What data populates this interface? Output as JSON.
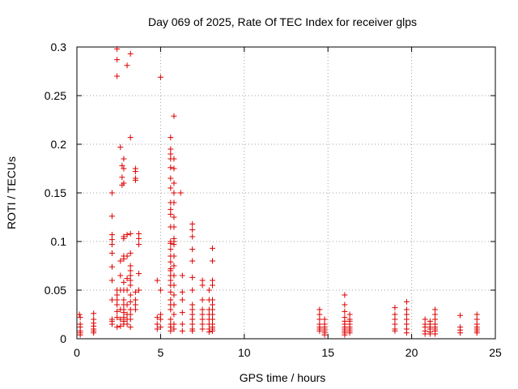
{
  "chart_data": {
    "type": "scatter",
    "title": "Day 069 of 2025, Rate Of TEC Index for receiver glps",
    "xlabel": "GPS time / hours",
    "ylabel": "ROTI / TECUs",
    "xlim": [
      0,
      25
    ],
    "ylim": [
      0,
      0.3
    ],
    "xticks": [
      {
        "value": 0,
        "label": "0"
      },
      {
        "value": 5,
        "label": "5"
      },
      {
        "value": 10,
        "label": "10"
      },
      {
        "value": 15,
        "label": "15"
      },
      {
        "value": 20,
        "label": "20"
      },
      {
        "value": 25,
        "label": "25"
      }
    ],
    "yticks": [
      {
        "value": 0,
        "label": "0"
      },
      {
        "value": 0.05,
        "label": "0.05"
      },
      {
        "value": 0.1,
        "label": "0.1"
      },
      {
        "value": 0.15,
        "label": "0.15"
      },
      {
        "value": 0.2,
        "label": "0.2"
      },
      {
        "value": 0.25,
        "label": "0.25"
      },
      {
        "value": 0.3,
        "label": "0.3"
      }
    ],
    "grid": true,
    "marker": "plus",
    "color": "#dd0000",
    "series": [
      {
        "name": "ROTI",
        "points": [
          [
            0.15,
            0.025
          ],
          [
            0.2,
            0.022
          ],
          [
            0.2,
            0.015
          ],
          [
            0.2,
            0.012
          ],
          [
            0.2,
            0.008
          ],
          [
            0.2,
            0.006
          ],
          [
            0.2,
            0.004
          ],
          [
            1.0,
            0.026
          ],
          [
            1.0,
            0.02
          ],
          [
            1.0,
            0.016
          ],
          [
            1.0,
            0.013
          ],
          [
            1.0,
            0.01
          ],
          [
            1.0,
            0.008
          ],
          [
            1.0,
            0.006
          ],
          [
            2.1,
            0.15
          ],
          [
            2.1,
            0.126
          ],
          [
            2.1,
            0.107
          ],
          [
            2.1,
            0.102
          ],
          [
            2.1,
            0.097
          ],
          [
            2.1,
            0.088
          ],
          [
            2.1,
            0.074
          ],
          [
            2.1,
            0.06
          ],
          [
            2.1,
            0.04
          ],
          [
            2.1,
            0.02
          ],
          [
            2.1,
            0.018
          ],
          [
            2.1,
            0.015
          ],
          [
            2.4,
            0.298
          ],
          [
            2.4,
            0.287
          ],
          [
            2.4,
            0.27
          ],
          [
            2.4,
            0.05
          ],
          [
            2.4,
            0.045
          ],
          [
            2.4,
            0.04
          ],
          [
            2.4,
            0.035
          ],
          [
            2.4,
            0.028
          ],
          [
            2.4,
            0.022
          ],
          [
            2.4,
            0.012
          ],
          [
            2.6,
            0.197
          ],
          [
            2.7,
            0.178
          ],
          [
            2.7,
            0.166
          ],
          [
            2.7,
            0.158
          ],
          [
            2.6,
            0.08
          ],
          [
            2.6,
            0.065
          ],
          [
            2.6,
            0.05
          ],
          [
            2.6,
            0.03
          ],
          [
            2.6,
            0.02
          ],
          [
            2.6,
            0.013
          ],
          [
            2.8,
            0.185
          ],
          [
            2.8,
            0.175
          ],
          [
            2.8,
            0.16
          ],
          [
            2.8,
            0.105
          ],
          [
            2.8,
            0.103
          ],
          [
            2.8,
            0.085
          ],
          [
            2.8,
            0.082
          ],
          [
            2.8,
            0.058
          ],
          [
            2.8,
            0.05
          ],
          [
            2.8,
            0.04
          ],
          [
            2.8,
            0.035
          ],
          [
            2.8,
            0.03
          ],
          [
            2.8,
            0.027
          ],
          [
            2.8,
            0.022
          ],
          [
            2.8,
            0.018
          ],
          [
            2.8,
            0.015
          ],
          [
            3.0,
            0.281
          ],
          [
            3.0,
            0.107
          ],
          [
            3.0,
            0.085
          ],
          [
            3.0,
            0.062
          ],
          [
            3.0,
            0.05
          ],
          [
            3.0,
            0.035
          ],
          [
            3.0,
            0.025
          ],
          [
            3.0,
            0.02
          ],
          [
            3.0,
            0.015
          ],
          [
            3.2,
            0.293
          ],
          [
            3.2,
            0.207
          ],
          [
            3.2,
            0.108
          ],
          [
            3.2,
            0.088
          ],
          [
            3.2,
            0.075
          ],
          [
            3.2,
            0.07
          ],
          [
            3.2,
            0.065
          ],
          [
            3.2,
            0.06
          ],
          [
            3.2,
            0.055
          ],
          [
            3.2,
            0.045
          ],
          [
            3.2,
            0.038
          ],
          [
            3.2,
            0.03
          ],
          [
            3.2,
            0.025
          ],
          [
            3.2,
            0.02
          ],
          [
            3.2,
            0.012
          ],
          [
            3.5,
            0.175
          ],
          [
            3.5,
            0.172
          ],
          [
            3.5,
            0.165
          ],
          [
            3.5,
            0.163
          ],
          [
            3.5,
            0.048
          ],
          [
            3.5,
            0.04
          ],
          [
            3.5,
            0.035
          ],
          [
            3.5,
            0.03
          ],
          [
            3.7,
            0.108
          ],
          [
            3.7,
            0.103
          ],
          [
            3.7,
            0.097
          ],
          [
            3.7,
            0.067
          ],
          [
            3.7,
            0.05
          ],
          [
            4.8,
            0.06
          ],
          [
            4.8,
            0.022
          ],
          [
            4.8,
            0.015
          ],
          [
            4.8,
            0.01
          ],
          [
            5.0,
            0.269
          ],
          [
            5.0,
            0.05
          ],
          [
            5.0,
            0.025
          ],
          [
            5.0,
            0.02
          ],
          [
            5.0,
            0.012
          ],
          [
            5.6,
            0.207
          ],
          [
            5.6,
            0.195
          ],
          [
            5.6,
            0.19
          ],
          [
            5.6,
            0.185
          ],
          [
            5.6,
            0.176
          ],
          [
            5.6,
            0.165
          ],
          [
            5.6,
            0.155
          ],
          [
            5.6,
            0.14
          ],
          [
            5.6,
            0.133
          ],
          [
            5.6,
            0.128
          ],
          [
            5.6,
            0.115
          ],
          [
            5.6,
            0.1
          ],
          [
            5.6,
            0.098
          ],
          [
            5.6,
            0.092
          ],
          [
            5.6,
            0.085
          ],
          [
            5.6,
            0.079
          ],
          [
            5.6,
            0.072
          ],
          [
            5.6,
            0.07
          ],
          [
            5.6,
            0.065
          ],
          [
            5.6,
            0.06
          ],
          [
            5.6,
            0.055
          ],
          [
            5.6,
            0.048
          ],
          [
            5.6,
            0.04
          ],
          [
            5.6,
            0.035
          ],
          [
            5.6,
            0.03
          ],
          [
            5.6,
            0.02
          ],
          [
            5.6,
            0.015
          ],
          [
            5.6,
            0.012
          ],
          [
            5.6,
            0.008
          ],
          [
            5.8,
            0.229
          ],
          [
            5.8,
            0.185
          ],
          [
            5.8,
            0.175
          ],
          [
            5.8,
            0.16
          ],
          [
            5.8,
            0.15
          ],
          [
            5.8,
            0.14
          ],
          [
            5.8,
            0.125
          ],
          [
            5.8,
            0.115
          ],
          [
            5.8,
            0.103
          ],
          [
            5.8,
            0.1
          ],
          [
            5.8,
            0.097
          ],
          [
            5.8,
            0.085
          ],
          [
            5.8,
            0.075
          ],
          [
            5.8,
            0.065
          ],
          [
            5.8,
            0.055
          ],
          [
            5.8,
            0.045
          ],
          [
            5.8,
            0.035
          ],
          [
            5.8,
            0.025
          ],
          [
            5.8,
            0.015
          ],
          [
            5.8,
            0.01
          ],
          [
            6.2,
            0.15
          ],
          [
            6.3,
            0.065
          ],
          [
            6.3,
            0.048
          ],
          [
            6.3,
            0.04
          ],
          [
            6.3,
            0.027
          ],
          [
            6.3,
            0.015
          ],
          [
            6.3,
            0.008
          ],
          [
            6.9,
            0.118
          ],
          [
            6.9,
            0.112
          ],
          [
            6.9,
            0.105
          ],
          [
            6.9,
            0.092
          ],
          [
            6.9,
            0.08
          ],
          [
            6.9,
            0.063
          ],
          [
            6.9,
            0.05
          ],
          [
            6.9,
            0.035
          ],
          [
            6.9,
            0.03
          ],
          [
            6.9,
            0.025
          ],
          [
            6.9,
            0.02
          ],
          [
            6.9,
            0.015
          ],
          [
            6.9,
            0.01
          ],
          [
            6.9,
            0.008
          ],
          [
            7.5,
            0.06
          ],
          [
            7.5,
            0.055
          ],
          [
            7.5,
            0.04
          ],
          [
            7.5,
            0.03
          ],
          [
            7.5,
            0.025
          ],
          [
            7.5,
            0.02
          ],
          [
            7.5,
            0.015
          ],
          [
            7.5,
            0.01
          ],
          [
            7.9,
            0.05
          ],
          [
            7.9,
            0.04
          ],
          [
            7.9,
            0.03
          ],
          [
            7.9,
            0.025
          ],
          [
            7.9,
            0.02
          ],
          [
            7.9,
            0.015
          ],
          [
            7.9,
            0.01
          ],
          [
            7.9,
            0.007
          ],
          [
            8.1,
            0.093
          ],
          [
            8.1,
            0.08
          ],
          [
            8.1,
            0.06
          ],
          [
            8.1,
            0.055
          ],
          [
            8.1,
            0.04
          ],
          [
            8.1,
            0.035
          ],
          [
            8.1,
            0.03
          ],
          [
            8.1,
            0.025
          ],
          [
            8.1,
            0.02
          ],
          [
            8.1,
            0.015
          ],
          [
            8.1,
            0.012
          ],
          [
            8.1,
            0.01
          ],
          [
            8.1,
            0.008
          ],
          [
            14.5,
            0.03
          ],
          [
            14.5,
            0.025
          ],
          [
            14.5,
            0.02
          ],
          [
            14.5,
            0.015
          ],
          [
            14.5,
            0.012
          ],
          [
            14.5,
            0.01
          ],
          [
            14.5,
            0.008
          ],
          [
            14.8,
            0.02
          ],
          [
            14.8,
            0.015
          ],
          [
            14.8,
            0.012
          ],
          [
            14.8,
            0.01
          ],
          [
            14.8,
            0.008
          ],
          [
            14.8,
            0.006
          ],
          [
            14.8,
            0.004
          ],
          [
            16.0,
            0.045
          ],
          [
            16.0,
            0.035
          ],
          [
            16.0,
            0.028
          ],
          [
            16.0,
            0.022
          ],
          [
            16.0,
            0.018
          ],
          [
            16.0,
            0.015
          ],
          [
            16.0,
            0.012
          ],
          [
            16.0,
            0.01
          ],
          [
            16.0,
            0.008
          ],
          [
            16.0,
            0.006
          ],
          [
            16.0,
            0.004
          ],
          [
            16.3,
            0.025
          ],
          [
            16.3,
            0.02
          ],
          [
            16.3,
            0.018
          ],
          [
            16.3,
            0.015
          ],
          [
            16.3,
            0.012
          ],
          [
            16.3,
            0.01
          ],
          [
            16.3,
            0.008
          ],
          [
            16.3,
            0.006
          ],
          [
            19.0,
            0.032
          ],
          [
            19.0,
            0.025
          ],
          [
            19.0,
            0.02
          ],
          [
            19.0,
            0.015
          ],
          [
            19.0,
            0.01
          ],
          [
            19.0,
            0.008
          ],
          [
            19.7,
            0.038
          ],
          [
            19.7,
            0.03
          ],
          [
            19.7,
            0.025
          ],
          [
            19.7,
            0.02
          ],
          [
            19.7,
            0.015
          ],
          [
            19.7,
            0.01
          ],
          [
            19.7,
            0.006
          ],
          [
            20.8,
            0.02
          ],
          [
            20.8,
            0.015
          ],
          [
            20.8,
            0.012
          ],
          [
            20.8,
            0.008
          ],
          [
            20.8,
            0.005
          ],
          [
            21.1,
            0.018
          ],
          [
            21.1,
            0.015
          ],
          [
            21.1,
            0.012
          ],
          [
            21.1,
            0.01
          ],
          [
            21.1,
            0.007
          ],
          [
            21.1,
            0.005
          ],
          [
            21.4,
            0.03
          ],
          [
            21.4,
            0.025
          ],
          [
            21.4,
            0.02
          ],
          [
            21.4,
            0.015
          ],
          [
            21.4,
            0.012
          ],
          [
            21.4,
            0.01
          ],
          [
            21.4,
            0.008
          ],
          [
            21.4,
            0.005
          ],
          [
            22.9,
            0.024
          ],
          [
            22.9,
            0.012
          ],
          [
            22.9,
            0.009
          ],
          [
            22.9,
            0.006
          ],
          [
            23.9,
            0.025
          ],
          [
            23.9,
            0.02
          ],
          [
            23.9,
            0.015
          ],
          [
            23.9,
            0.012
          ],
          [
            23.9,
            0.01
          ],
          [
            23.9,
            0.008
          ],
          [
            23.9,
            0.006
          ]
        ]
      }
    ]
  }
}
